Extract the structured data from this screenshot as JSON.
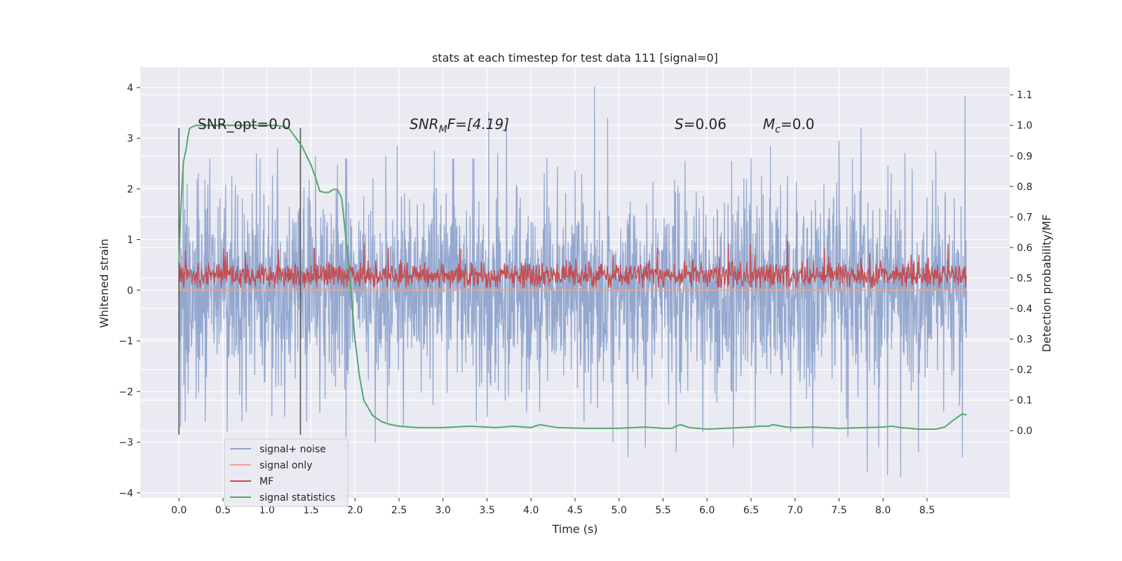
{
  "chart_data": {
    "type": "line",
    "title": "stats at each timestep for test data 111 [signal=0]",
    "xlabel": "Time (s)",
    "ylabel": "Whitened strain",
    "ylabel_right": "Detection probability/MF",
    "xlim": [
      -0.44,
      9.44
    ],
    "ylim": [
      -4.1,
      4.4
    ],
    "ylim_right": [
      -0.22,
      1.19
    ],
    "x_ticks": [
      0.0,
      0.5,
      1.0,
      1.5,
      2.0,
      2.5,
      3.0,
      3.5,
      4.0,
      4.5,
      5.0,
      5.5,
      6.0,
      6.5,
      7.0,
      7.5,
      8.0,
      8.5
    ],
    "x_tick_labels": [
      "0.0",
      "0.5",
      "1.0",
      "1.5",
      "2.0",
      "2.5",
      "3.0",
      "3.5",
      "4.0",
      "4.5",
      "5.0",
      "5.5",
      "6.0",
      "6.5",
      "7.0",
      "7.5",
      "8.0",
      "8.5"
    ],
    "y_ticks": [
      4,
      3,
      2,
      1,
      0,
      -1,
      -2,
      -3,
      -4
    ],
    "y_tick_labels": [
      "4",
      "3",
      "2",
      "1",
      "0",
      "−1",
      "−2",
      "−3",
      "−4"
    ],
    "y_ticks_right": [
      1.1,
      1.0,
      0.9,
      0.8,
      0.7,
      0.6,
      0.5,
      0.4,
      0.3,
      0.2,
      0.1,
      0.0
    ],
    "y_tick_labels_right": [
      "1.1",
      "1.0",
      "0.9",
      "0.8",
      "0.7",
      "0.6",
      "0.5",
      "0.4",
      "0.3",
      "0.2",
      "0.1",
      "0.0"
    ],
    "grid": true,
    "annotations": {
      "snr_opt": "SNR_opt=0.0",
      "snr_mf_main": "SNR",
      "snr_mf_sub": "M",
      "snr_mf_tail": "F=[4.19]",
      "s_main": "S",
      "s_tail": "=0.06",
      "mc_main": "M",
      "mc_sub": "c",
      "mc_tail": "=0.0"
    },
    "vertical_markers": [
      {
        "x": 0.0,
        "y_range": [
          -2.85,
          3.2
        ]
      },
      {
        "x": 1.38,
        "y_range": [
          -2.85,
          3.2
        ]
      }
    ],
    "series": [
      {
        "name": "signal+ noise",
        "axis": "left",
        "color": "#8fa4cc",
        "description_stats": {
          "t_start": 0.0,
          "t_end": 8.95,
          "core_band": [
            -1.3,
            1.3
          ],
          "spike_max": 4.02,
          "spike_min": -3.7
        },
        "spikes_up": [
          [
            0.05,
            2.35
          ],
          [
            0.22,
            2.3
          ],
          [
            0.35,
            2.6
          ],
          [
            0.55,
            2.05
          ],
          [
            0.88,
            2.7
          ],
          [
            1.12,
            2.8
          ],
          [
            1.55,
            2.65
          ],
          [
            2.35,
            2.65
          ],
          [
            2.48,
            2.85
          ],
          [
            2.9,
            2.75
          ],
          [
            3.52,
            3.52
          ],
          [
            3.62,
            2.7
          ],
          [
            3.72,
            3.2
          ],
          [
            4.18,
            2.6
          ],
          [
            4.5,
            2.35
          ],
          [
            4.72,
            4.02
          ],
          [
            4.87,
            3.4
          ],
          [
            5.3,
            2.4
          ],
          [
            5.75,
            2.55
          ],
          [
            5.95,
            2.95
          ],
          [
            6.28,
            2.55
          ],
          [
            6.5,
            2.6
          ],
          [
            6.62,
            2.25
          ],
          [
            6.72,
            2.85
          ],
          [
            7.2,
            2.6
          ],
          [
            7.5,
            2.95
          ],
          [
            7.75,
            3.2
          ],
          [
            8.05,
            2.55
          ],
          [
            8.25,
            2.7
          ],
          [
            8.6,
            2.75
          ],
          [
            8.93,
            3.85
          ]
        ],
        "spikes_down": [
          [
            0.02,
            -2.7
          ],
          [
            0.3,
            -2.6
          ],
          [
            0.55,
            -2.8
          ],
          [
            1.2,
            -2.5
          ],
          [
            1.45,
            -2.6
          ],
          [
            1.9,
            -2.9
          ],
          [
            2.23,
            -3.0
          ],
          [
            2.55,
            -2.7
          ],
          [
            3.5,
            -2.5
          ],
          [
            4.1,
            -2.4
          ],
          [
            4.6,
            -2.6
          ],
          [
            4.93,
            -3.0
          ],
          [
            5.1,
            -3.3
          ],
          [
            5.3,
            -3.1
          ],
          [
            5.65,
            -3.2
          ],
          [
            5.95,
            -2.8
          ],
          [
            6.3,
            -3.1
          ],
          [
            6.55,
            -2.7
          ],
          [
            6.95,
            -2.8
          ],
          [
            7.2,
            -3.1
          ],
          [
            7.6,
            -2.9
          ],
          [
            7.82,
            -3.6
          ],
          [
            7.95,
            -3.1
          ],
          [
            8.05,
            -3.65
          ],
          [
            8.2,
            -3.7
          ],
          [
            8.4,
            -3.2
          ],
          [
            8.9,
            -3.3
          ]
        ]
      },
      {
        "name": "signal only",
        "axis": "left",
        "color": "#f4a582",
        "x": [
          0.0,
          8.95
        ],
        "values": [
          0.0,
          0.0
        ]
      },
      {
        "name": "MF",
        "axis": "left",
        "color": "#c44e52",
        "description_stats": {
          "t_start": 0.0,
          "t_end": 8.95,
          "baseline": 0.3,
          "band": [
            0.05,
            0.6
          ],
          "peak_max": 1.0
        }
      },
      {
        "name": "signal statistics",
        "axis": "right",
        "color": "#55a868",
        "x": [
          0.0,
          0.02,
          0.05,
          0.08,
          0.1,
          0.12,
          0.15,
          0.2,
          0.3,
          0.5,
          0.8,
          1.0,
          1.1,
          1.2,
          1.25,
          1.3,
          1.35,
          1.4,
          1.45,
          1.5,
          1.55,
          1.6,
          1.65,
          1.7,
          1.75,
          1.8,
          1.85,
          1.9,
          1.95,
          2.0,
          2.05,
          2.1,
          2.2,
          2.3,
          2.4,
          2.5,
          2.7,
          3.0,
          3.3,
          3.6,
          3.8,
          4.0,
          4.1,
          4.3,
          4.6,
          5.0,
          5.3,
          5.5,
          5.6,
          5.65,
          5.7,
          5.8,
          6.0,
          6.2,
          6.5,
          6.6,
          6.7,
          6.75,
          6.9,
          7.0,
          7.2,
          7.5,
          7.8,
          8.0,
          8.1,
          8.2,
          8.3,
          8.4,
          8.5,
          8.6,
          8.7,
          8.8,
          8.85,
          8.9,
          8.95
        ],
        "values": [
          0.55,
          0.72,
          0.88,
          0.92,
          0.96,
          0.99,
          0.995,
          1.0,
          1.0,
          1.0,
          1.0,
          1.0,
          1.0,
          0.995,
          0.99,
          0.97,
          0.95,
          0.93,
          0.9,
          0.87,
          0.83,
          0.785,
          0.78,
          0.78,
          0.79,
          0.79,
          0.76,
          0.62,
          0.47,
          0.3,
          0.18,
          0.1,
          0.05,
          0.03,
          0.02,
          0.015,
          0.01,
          0.01,
          0.015,
          0.01,
          0.015,
          0.01,
          0.02,
          0.01,
          0.008,
          0.008,
          0.012,
          0.008,
          0.008,
          0.015,
          0.02,
          0.01,
          0.005,
          0.008,
          0.012,
          0.015,
          0.015,
          0.02,
          0.012,
          0.01,
          0.012,
          0.008,
          0.01,
          0.012,
          0.015,
          0.01,
          0.008,
          0.005,
          0.005,
          0.005,
          0.012,
          0.035,
          0.045,
          0.055,
          0.052
        ]
      }
    ],
    "legend": {
      "position": "lower-left",
      "entries": [
        {
          "label": "signal+ noise",
          "color": "#8fa4cc"
        },
        {
          "label": "signal only",
          "color": "#f4a582"
        },
        {
          "label": "MF",
          "color": "#c44e52"
        },
        {
          "label": "signal statistics",
          "color": "#55a868"
        }
      ]
    }
  }
}
